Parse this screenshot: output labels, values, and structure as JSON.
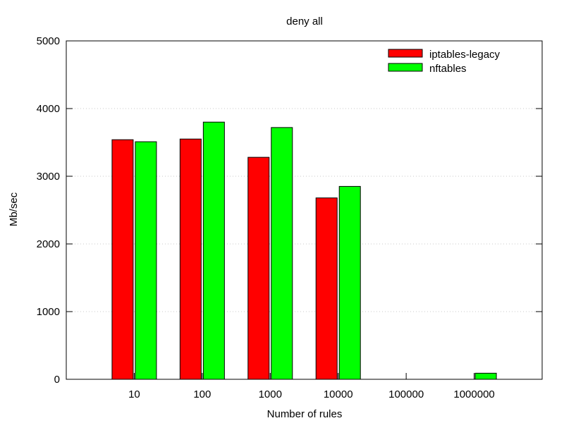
{
  "chart_data": {
    "type": "bar",
    "title": "deny all",
    "xlabel": "Number of rules",
    "ylabel": "Mb/sec",
    "categories": [
      "10",
      "100",
      "1000",
      "10000",
      "100000",
      "1000000"
    ],
    "ylim": [
      0,
      5000
    ],
    "yticks": [
      "0",
      "1000",
      "2000",
      "3000",
      "4000",
      "5000"
    ],
    "grid": "horizontal dotted",
    "legend_position": "top-right",
    "series": [
      {
        "name": "iptables-legacy",
        "color": "#ff0000",
        "values": [
          3540,
          3550,
          3280,
          2680,
          0,
          0
        ]
      },
      {
        "name": "nftables",
        "color": "#00ff00",
        "values": [
          3510,
          3800,
          3720,
          2850,
          0,
          90
        ]
      }
    ]
  }
}
